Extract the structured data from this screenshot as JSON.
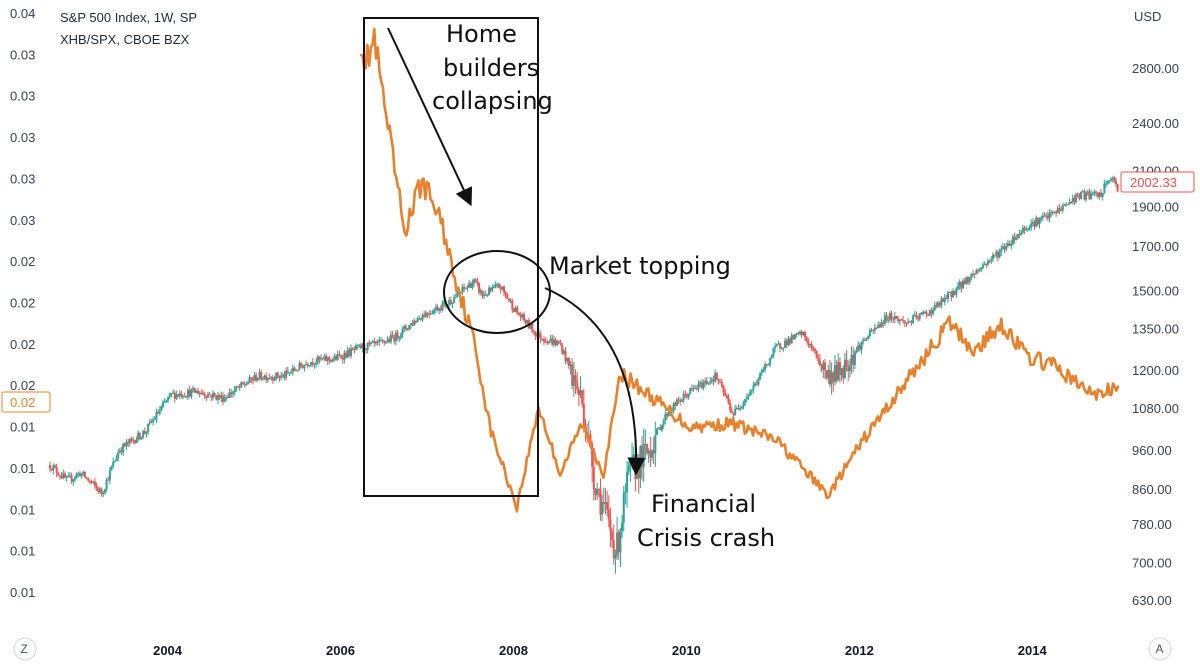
{
  "legend": {
    "line1": "S&P 500 Index, 1W, SP",
    "line2": "XHB/SPX, CBOE BZX"
  },
  "right_axis": {
    "unit": "USD",
    "ticks": [
      "2800.00",
      "2400.00",
      "2100.00",
      "1900.00",
      "1700.00",
      "1500.00",
      "1350.00",
      "1200.00",
      "1080.00",
      "960.00",
      "860.00",
      "780.00",
      "700.00",
      "630.00"
    ],
    "last_price_label": "2002.33"
  },
  "left_axis": {
    "ticks": [
      "0.04",
      "0.03",
      "0.03",
      "0.03",
      "0.03",
      "0.03",
      "0.02",
      "0.02",
      "0.02",
      "0.02",
      "0.01",
      "0.01",
      "0.01",
      "0.01",
      "0.01"
    ],
    "last_value_label": "0.02"
  },
  "x_axis": {
    "ticks": [
      "2004",
      "2006",
      "2008",
      "2010",
      "2012",
      "2014"
    ]
  },
  "buttons": {
    "left": "Z",
    "right": "A"
  },
  "annotations": {
    "home_builders": [
      "Home",
      "builders",
      "collapsing"
    ],
    "market_topping": "Market topping",
    "financial_crisis": [
      "Financial",
      "Crisis crash"
    ]
  },
  "colors": {
    "up": "#26a69a",
    "down": "#ef5350",
    "ratio_line": "#e8812b",
    "annotation": "#111111",
    "price_label_border": "#ef5350",
    "ratio_label_border": "#e8812b"
  },
  "chart_data": {
    "type": "line",
    "title": "S&P 500 Index, 1W, SP",
    "xlabel": "",
    "ylabel": "USD",
    "x_range": [
      2002.6,
      2014.95
    ],
    "ylim_right": [
      630,
      3250
    ],
    "y_scale_right": "log",
    "ylim_left": [
      0.005,
      0.04
    ],
    "series": [
      {
        "name": "S&P 500 Index, 1W, SP",
        "style": "candlestick",
        "x": [
          2002.6,
          2002.8,
          2002.95,
          2003.2,
          2003.4,
          2003.7,
          2004.0,
          2004.3,
          2004.6,
          2005.0,
          2005.3,
          2005.6,
          2005.9,
          2006.2,
          2006.4,
          2006.6,
          2006.9,
          2007.2,
          2007.5,
          2007.6,
          2007.8,
          2008.0,
          2008.25,
          2008.5,
          2008.75,
          2008.9,
          2009.15,
          2009.3,
          2009.5,
          2009.75,
          2010.0,
          2010.3,
          2010.5,
          2010.75,
          2011.0,
          2011.3,
          2011.6,
          2011.75,
          2012.0,
          2012.3,
          2012.5,
          2012.8,
          2013.0,
          2013.3,
          2013.6,
          2013.9,
          2014.2,
          2014.5,
          2014.75,
          2014.85,
          2014.95
        ],
        "values": [
          920,
          880,
          900,
          850,
          960,
          1010,
          1120,
          1130,
          1110,
          1180,
          1180,
          1230,
          1240,
          1280,
          1290,
          1320,
          1400,
          1450,
          1540,
          1480,
          1520,
          1410,
          1320,
          1290,
          1100,
          880,
          720,
          900,
          950,
          1070,
          1130,
          1180,
          1060,
          1150,
          1280,
          1330,
          1180,
          1200,
          1300,
          1400,
          1370,
          1420,
          1480,
          1580,
          1680,
          1800,
          1860,
          1960,
          1960,
          2060,
          2002.33
        ]
      },
      {
        "name": "XHB/SPX, CBOE BZX",
        "style": "line",
        "x": [
          2002.6,
          2006.2,
          2006.25,
          2006.35,
          2006.45,
          2006.7,
          2006.9,
          2007.1,
          2007.3,
          2007.5,
          2007.7,
          2007.9,
          2008.0,
          2008.25,
          2008.5,
          2008.75,
          2009.0,
          2009.2,
          2009.5,
          2010.0,
          2010.5,
          2011.0,
          2011.6,
          2012.0,
          2012.5,
          2013.0,
          2013.3,
          2013.6,
          2013.9,
          2014.2,
          2014.5,
          2014.7,
          2014.95
        ],
        "values": [
          0.02,
          0.0385,
          0.037,
          0.0385,
          0.035,
          0.027,
          0.03,
          0.028,
          0.024,
          0.0205,
          0.015,
          0.012,
          0.0105,
          0.0165,
          0.0125,
          0.0155,
          0.0125,
          0.0185,
          0.0173,
          0.0153,
          0.0155,
          0.0145,
          0.0112,
          0.0145,
          0.018,
          0.0215,
          0.0198,
          0.0215,
          0.0195,
          0.019,
          0.0178,
          0.0172,
          0.0177
        ]
      }
    ],
    "annotations": [
      "Home builders collapsing",
      "Market topping",
      "Financial Crisis crash"
    ]
  }
}
